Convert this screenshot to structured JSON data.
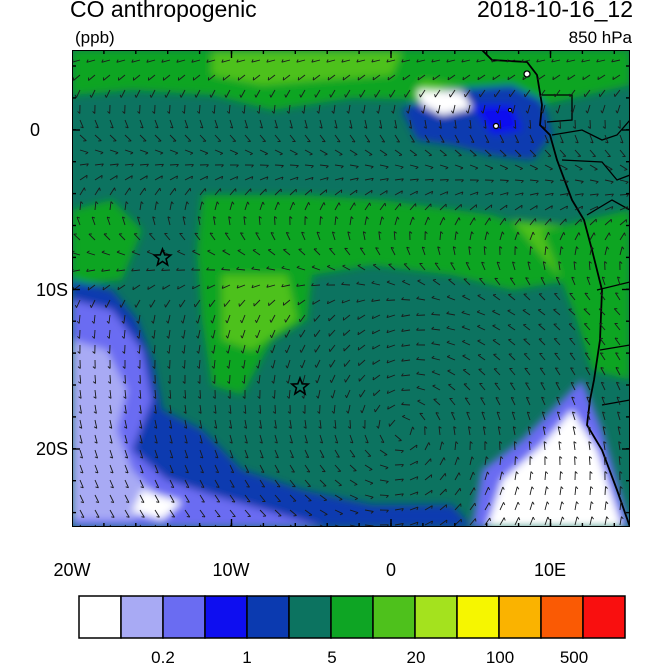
{
  "header": {
    "title_left": "CO anthropogenic",
    "title_right": "2018-10-16_12",
    "units": "(ppb)",
    "level": "850 hPa"
  },
  "axes": {
    "lat_ticks": [
      "0",
      "10S",
      "20S"
    ],
    "lon_ticks": [
      "20W",
      "10W",
      "0",
      "10E"
    ]
  },
  "markers": [
    {
      "name": "star-marker-a",
      "lon": "14.5W",
      "lat": "8S"
    },
    {
      "name": "star-marker-b",
      "lon": "5.8W",
      "lat": "16S"
    }
  ],
  "colorbar": {
    "colors": [
      "#ffffff",
      "#a8aaf4",
      "#6a6cf2",
      "#0e0ef0",
      "#0b3ab0",
      "#0c7360",
      "#0ea524",
      "#4ec11c",
      "#a4e21e",
      "#f6f600",
      "#fab300",
      "#fa5a04",
      "#f90f0f"
    ],
    "labels": [
      "0.2",
      "1",
      "5",
      "20",
      "100",
      "500"
    ]
  },
  "colors": {
    "background_field": "#0c7360",
    "ocean_blue": "#0b3ab0",
    "coast": "#000000"
  }
}
